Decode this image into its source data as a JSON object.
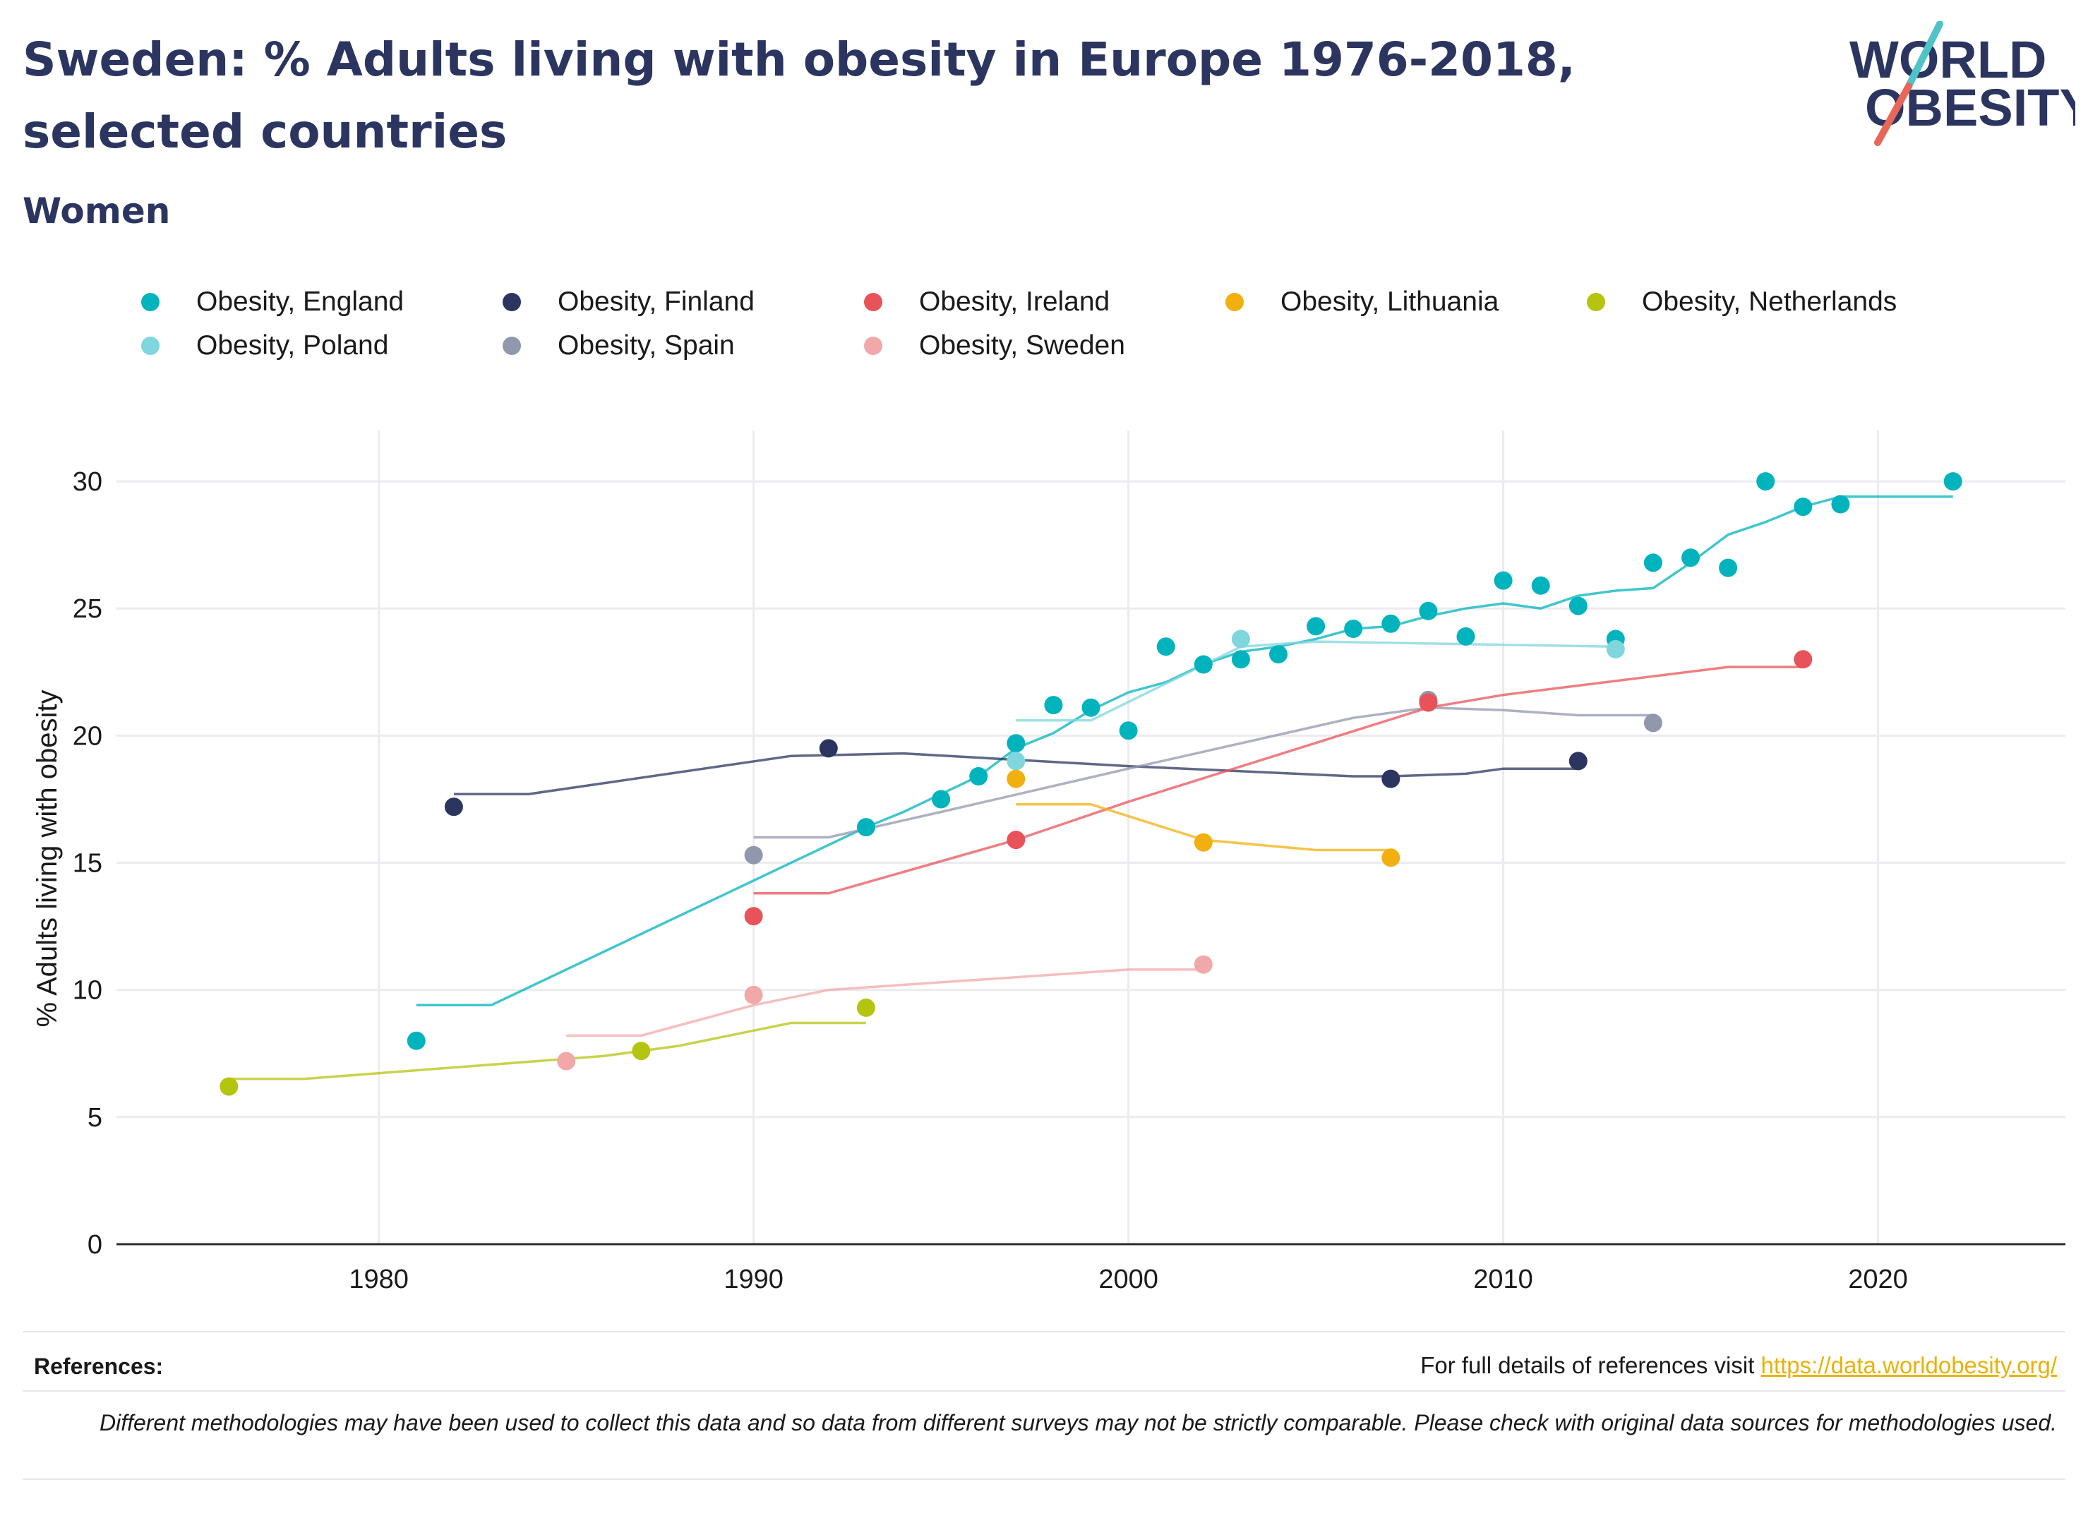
{
  "title": "Sweden: % Adults living with obesity in Europe 1976-2018, selected countries",
  "subtitle": "Women",
  "logo": {
    "line1": "WORLD",
    "line2": "OBESITY",
    "accent_color": "#4fc3c8",
    "accent_color2": "#e8665a"
  },
  "references": {
    "label": "References:",
    "text": "For full details of references visit ",
    "link": "https://data.worldobesity.org/"
  },
  "disclaimer": "Different methodologies may have been used to collect this data and so data from different surveys may not be strictly comparable. Please check with original data sources for methodologies used.",
  "chart_data": {
    "type": "scatter",
    "title": "Sweden: % Adults living with obesity in Europe 1976-2018, selected countries",
    "subtitle": "Women",
    "xlabel": "",
    "ylabel": "% Adults living with obesity",
    "xlim": [
      1973,
      2025
    ],
    "ylim": [
      0,
      32
    ],
    "xticks": [
      1980,
      1990,
      2000,
      2010,
      2020
    ],
    "yticks": [
      0,
      5,
      10,
      15,
      20,
      25,
      30
    ],
    "grid": true,
    "legend_position": "top",
    "series": [
      {
        "name": "Obesity, England",
        "color": "#00b3bd",
        "points": [
          [
            1981,
            8.0
          ],
          [
            1993,
            16.4
          ],
          [
            1995,
            17.5
          ],
          [
            1996,
            18.4
          ],
          [
            1997,
            19.7
          ],
          [
            1998,
            21.2
          ],
          [
            1999,
            21.1
          ],
          [
            2000,
            20.2
          ],
          [
            2001,
            23.5
          ],
          [
            2002,
            22.8
          ],
          [
            2003,
            23.0
          ],
          [
            2004,
            23.2
          ],
          [
            2005,
            24.3
          ],
          [
            2006,
            24.2
          ],
          [
            2007,
            24.4
          ],
          [
            2008,
            24.9
          ],
          [
            2009,
            23.9
          ],
          [
            2010,
            26.1
          ],
          [
            2011,
            25.9
          ],
          [
            2012,
            25.1
          ],
          [
            2013,
            23.8
          ],
          [
            2014,
            26.8
          ],
          [
            2015,
            27.0
          ],
          [
            2016,
            26.6
          ],
          [
            2017,
            30.0
          ],
          [
            2018,
            29.0
          ],
          [
            2019,
            29.1
          ],
          [
            2022,
            30.0
          ]
        ],
        "trend": [
          [
            1981,
            9.4
          ],
          [
            1983,
            9.4
          ],
          [
            1993,
            16.4
          ],
          [
            1994,
            17.0
          ],
          [
            1995,
            17.7
          ],
          [
            1996,
            18.4
          ],
          [
            1997,
            19.5
          ],
          [
            1998,
            20.1
          ],
          [
            1999,
            21.0
          ],
          [
            2000,
            21.7
          ],
          [
            2001,
            22.1
          ],
          [
            2002,
            22.8
          ],
          [
            2003,
            23.3
          ],
          [
            2004,
            23.5
          ],
          [
            2005,
            23.8
          ],
          [
            2006,
            24.2
          ],
          [
            2007,
            24.3
          ],
          [
            2008,
            24.7
          ],
          [
            2009,
            25.0
          ],
          [
            2010,
            25.2
          ],
          [
            2011,
            25.0
          ],
          [
            2012,
            25.5
          ],
          [
            2013,
            25.7
          ],
          [
            2014,
            25.8
          ],
          [
            2015,
            26.8
          ],
          [
            2016,
            27.9
          ],
          [
            2017,
            28.4
          ],
          [
            2018,
            29.0
          ],
          [
            2019,
            29.4
          ],
          [
            2022,
            29.4
          ]
        ]
      },
      {
        "name": "Obesity, Poland",
        "color": "#7fd6dc",
        "points": [
          [
            1997,
            19.0
          ],
          [
            2003,
            23.8
          ],
          [
            2013,
            23.4
          ]
        ],
        "trend": [
          [
            1997,
            20.6
          ],
          [
            1999,
            20.6
          ],
          [
            2003,
            23.5
          ],
          [
            2005,
            23.7
          ],
          [
            2013,
            23.5
          ]
        ]
      },
      {
        "name": "Obesity, Finland",
        "color": "#2b3560",
        "points": [
          [
            1982,
            17.2
          ],
          [
            1992,
            19.5
          ],
          [
            2007,
            18.3
          ],
          [
            2012,
            19.0
          ]
        ],
        "trend": [
          [
            1982,
            17.7
          ],
          [
            1984,
            17.7
          ],
          [
            1991,
            19.2
          ],
          [
            1994,
            19.3
          ],
          [
            2000,
            18.8
          ],
          [
            2006,
            18.4
          ],
          [
            2007,
            18.4
          ],
          [
            2009,
            18.5
          ],
          [
            2010,
            18.7
          ],
          [
            2012,
            18.7
          ]
        ]
      },
      {
        "name": "Obesity, Spain",
        "color": "#9197ac",
        "points": [
          [
            1990,
            15.3
          ],
          [
            2008,
            21.4
          ],
          [
            2014,
            20.5
          ]
        ],
        "trend": [
          [
            1990,
            16.0
          ],
          [
            1992,
            16.0
          ],
          [
            1995,
            17.0
          ],
          [
            2000,
            18.7
          ],
          [
            2006,
            20.7
          ],
          [
            2008,
            21.1
          ],
          [
            2010,
            21.0
          ],
          [
            2012,
            20.8
          ],
          [
            2014,
            20.8
          ]
        ]
      },
      {
        "name": "Obesity, Ireland",
        "color": "#e8535a",
        "points": [
          [
            1990,
            12.9
          ],
          [
            1997,
            15.9
          ],
          [
            2008,
            21.3
          ],
          [
            2018,
            23.0
          ]
        ],
        "trend": [
          [
            1990,
            13.8
          ],
          [
            1992,
            13.8
          ],
          [
            1997,
            15.9
          ],
          [
            2000,
            17.4
          ],
          [
            2008,
            21.1
          ],
          [
            2010,
            21.6
          ],
          [
            2016,
            22.7
          ],
          [
            2018,
            22.7
          ]
        ]
      },
      {
        "name": "Obesity, Sweden",
        "color": "#f2a8a8",
        "points": [
          [
            1985,
            7.2
          ],
          [
            1990,
            9.8
          ],
          [
            2002,
            11.0
          ]
        ],
        "trend": [
          [
            1985,
            8.2
          ],
          [
            1987,
            8.2
          ],
          [
            1990,
            9.4
          ],
          [
            1992,
            10.0
          ],
          [
            2000,
            10.8
          ],
          [
            2002,
            10.8
          ]
        ]
      },
      {
        "name": "Obesity, Lithuania",
        "color": "#f2b010",
        "points": [
          [
            1997,
            18.3
          ],
          [
            2002,
            15.8
          ],
          [
            2007,
            15.2
          ]
        ],
        "trend": [
          [
            1997,
            17.3
          ],
          [
            1999,
            17.3
          ],
          [
            2002,
            15.9
          ],
          [
            2005,
            15.5
          ],
          [
            2007,
            15.5
          ]
        ]
      },
      {
        "name": "Obesity, Netherlands",
        "color": "#b5c410",
        "points": [
          [
            1976,
            6.2
          ],
          [
            1987,
            7.6
          ],
          [
            1993,
            9.3
          ]
        ],
        "trend": [
          [
            1976,
            6.5
          ],
          [
            1978,
            6.5
          ],
          [
            1986,
            7.4
          ],
          [
            1988,
            7.8
          ],
          [
            1991,
            8.7
          ],
          [
            1993,
            8.7
          ]
        ]
      }
    ],
    "legend_order": [
      0,
      2,
      4,
      6,
      7,
      1,
      3,
      5
    ]
  }
}
